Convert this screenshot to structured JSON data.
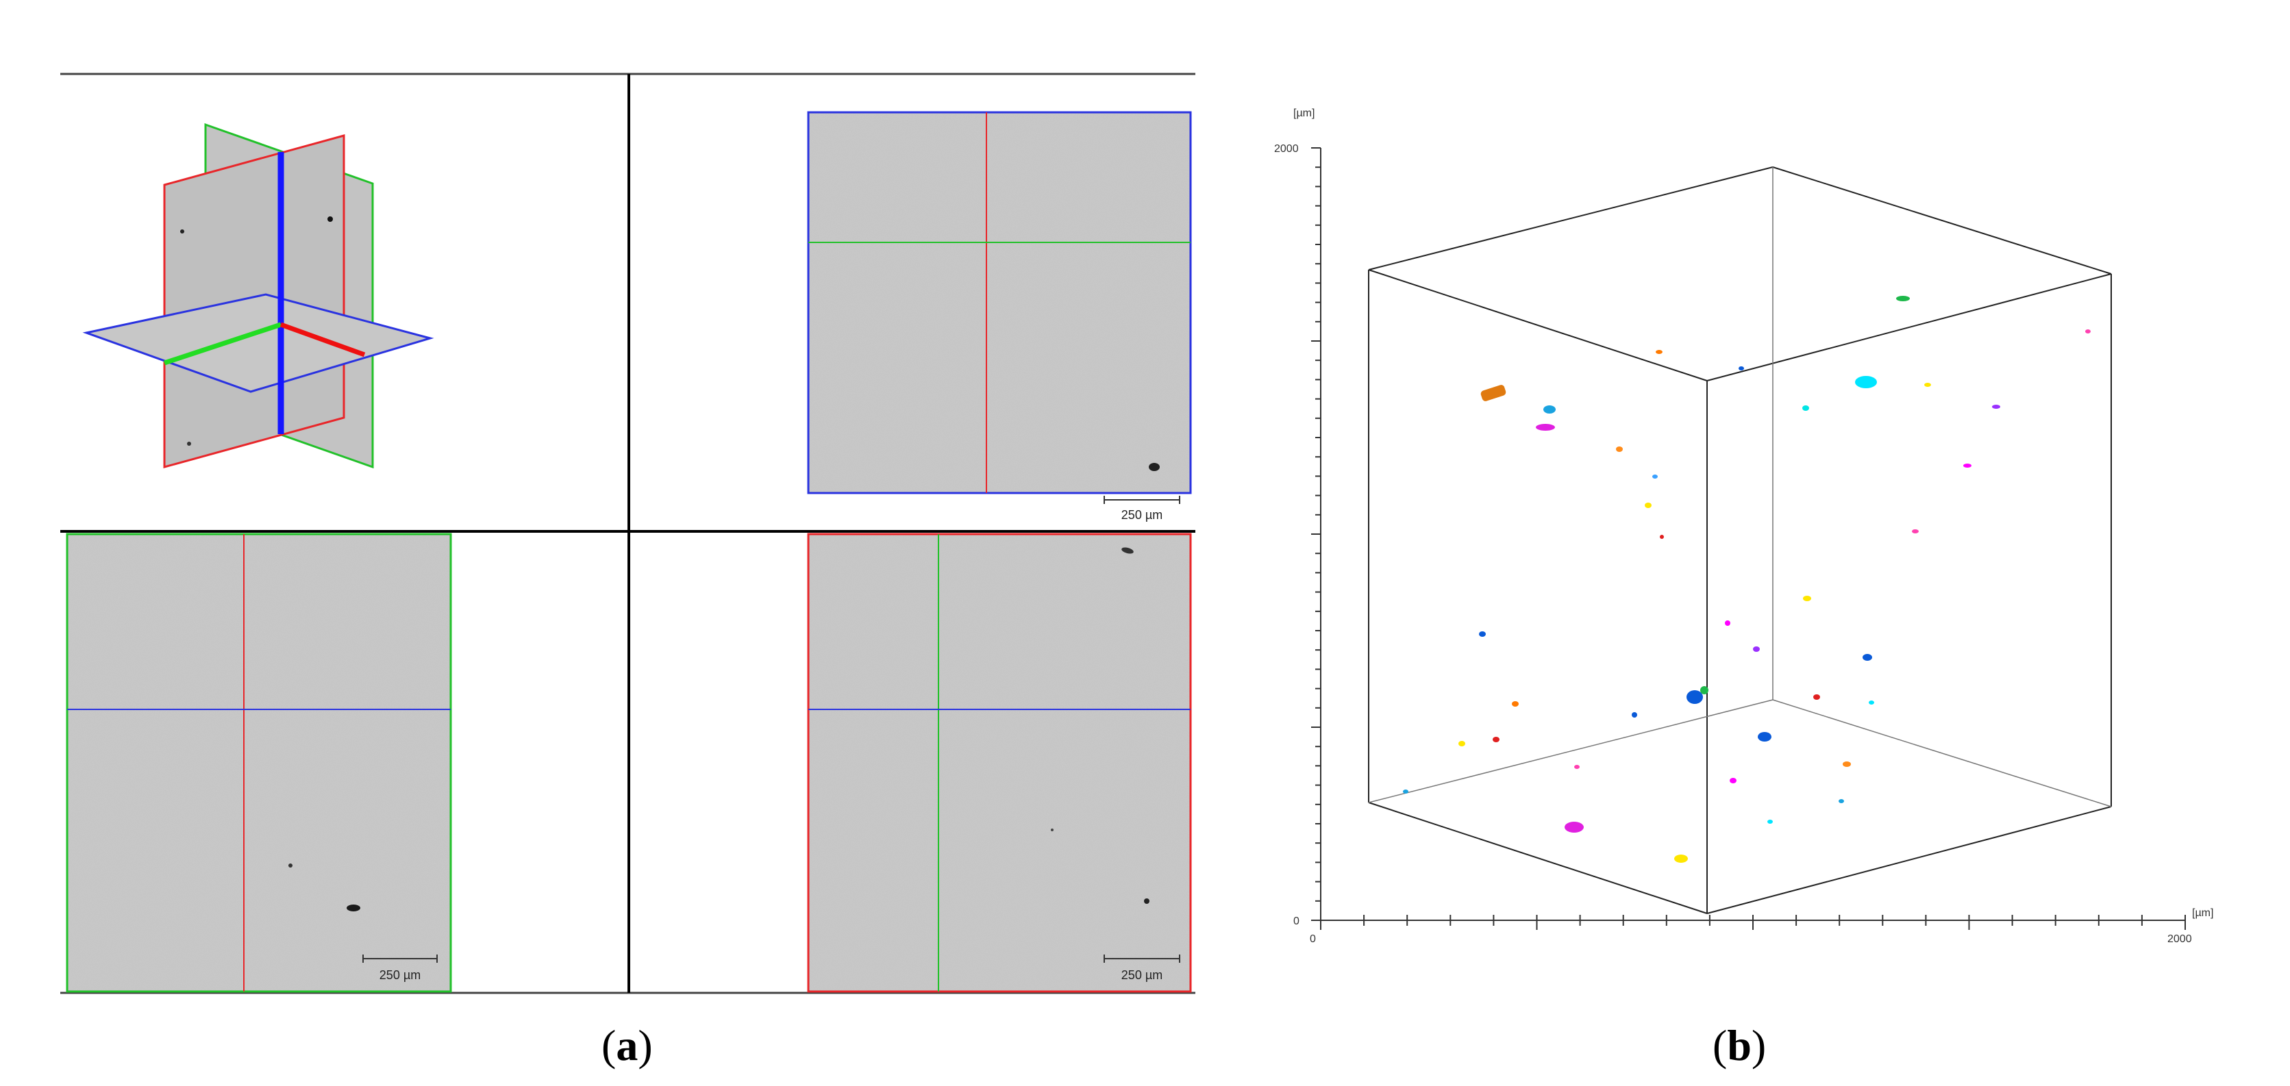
{
  "panel_a": {
    "scale_bar_label": "250 µm",
    "colors": {
      "x_plane": "#e8262a",
      "y_plane": "#22c12a",
      "z_plane": "#2a33e0",
      "slice_bg": "#c3c3c3"
    },
    "caption_open": "(",
    "caption_letter": "a",
    "caption_close": ")"
  },
  "panel_b": {
    "y_axis_unit": "[µm]",
    "x_axis_unit": "[µm]",
    "y_axis_max": "2000",
    "y_axis_min": "0",
    "x_axis_min": "0",
    "x_axis_max": "2000",
    "caption_open": "(",
    "caption_letter": "b",
    "caption_close": ")",
    "particle_colors": [
      "#ff00ff",
      "#00e5ff",
      "#ffe600",
      "#ff7a00",
      "#0a5ad8",
      "#1db84a",
      "#e02020",
      "#9a30ff"
    ]
  }
}
